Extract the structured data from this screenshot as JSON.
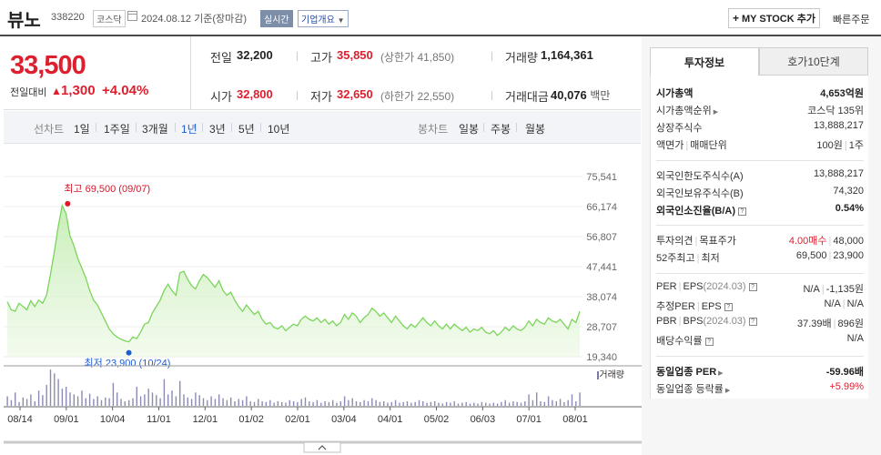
{
  "header": {
    "stock_name": "뷰노",
    "stock_code": "338220",
    "market": "코스닥",
    "date_text": "2024.08.12 기준(장마감)",
    "realtime_label": "실시간",
    "overview_label": "기업개요",
    "mystock_label": "MY STOCK 추가",
    "quick_order_label": "빠른주문"
  },
  "price": {
    "current": "33,500",
    "change_label": "전일대비",
    "change_arrow": "▲",
    "change_value": "1,300",
    "change_pct": "+4.04%"
  },
  "quote": {
    "prev_close_label": "전일",
    "prev_close": "32,200",
    "high_label": "고가",
    "high": "35,850",
    "upper_limit": "(상한가 41,850)",
    "volume_label": "거래량",
    "volume": "1,164,361",
    "open_label": "시가",
    "open": "32,800",
    "low_label": "저가",
    "low": "32,650",
    "lower_limit": "(하한가 22,550)",
    "amount_label": "거래대금",
    "amount": "40,076",
    "amount_unit": "백만"
  },
  "period_bar": {
    "line_label": "선차트",
    "periods": [
      "1일",
      "1주일",
      "3개월",
      "1년",
      "3년",
      "5년",
      "10년"
    ],
    "active_period": "1년",
    "candle_label": "봉차트",
    "candles": [
      "일봉",
      "주봉",
      "월봉"
    ]
  },
  "chart_data": {
    "type": "area",
    "y_ticks": [
      "75,541",
      "66,174",
      "56,807",
      "47,441",
      "38,074",
      "28,707",
      "19,340"
    ],
    "ylim": [
      19340,
      75541
    ],
    "x_ticks": [
      "08/14",
      "09/01",
      "10/04",
      "11/01",
      "12/01",
      "01/02",
      "02/01",
      "03/04",
      "04/01",
      "05/02",
      "06/03",
      "07/01",
      "08/01"
    ],
    "high_annotation": "최고 69,500 (09/07)",
    "low_annotation": "최저 23,900 (10/24)",
    "volume_label": "거래량",
    "values": [
      36500,
      34000,
      33500,
      36000,
      35000,
      34000,
      36800,
      35000,
      37000,
      36000,
      38500,
      45000,
      52000,
      60000,
      66500,
      64000,
      57000,
      54000,
      50000,
      47000,
      44000,
      40000,
      37000,
      35500,
      33000,
      30500,
      28000,
      26500,
      25500,
      24800,
      24300,
      24000,
      25500,
      25000,
      27000,
      29500,
      30000,
      33000,
      35000,
      37000,
      40000,
      42000,
      40000,
      38500,
      45500,
      46000,
      43500,
      41500,
      40500,
      43000,
      45000,
      44000,
      42500,
      41000,
      43000,
      40000,
      38500,
      39500,
      37000,
      35000,
      33500,
      35500,
      34000,
      32500,
      33500,
      31000,
      29500,
      30000,
      28500,
      28000,
      29000,
      27500,
      28500,
      29500,
      29000,
      31000,
      32000,
      31000,
      30500,
      31500,
      30000,
      31000,
      29500,
      30500,
      29000,
      30000,
      32500,
      31000,
      33000,
      32000,
      30000,
      31500,
      32500,
      34500,
      33500,
      32000,
      33000,
      31500,
      30000,
      32000,
      30500,
      29000,
      28000,
      29500,
      28500,
      30000,
      31500,
      30000,
      29000,
      30500,
      29000,
      28000,
      29500,
      28000,
      29500,
      28500,
      27500,
      28500,
      27000,
      28000,
      27500,
      28500,
      27000,
      26500,
      27500,
      26000,
      27000,
      28500,
      27500,
      29000,
      28000,
      27500,
      28500,
      30500,
      29000,
      31000,
      30000,
      29500,
      31500,
      30500,
      30000,
      31000,
      29500,
      28000,
      31000,
      30000,
      33500
    ],
    "volumes": [
      0.25,
      0.15,
      0.35,
      0.1,
      0.22,
      0.18,
      0.3,
      0.12,
      0.4,
      0.28,
      0.55,
      0.95,
      0.85,
      0.7,
      0.45,
      0.5,
      0.35,
      0.3,
      0.25,
      0.4,
      0.2,
      0.32,
      0.18,
      0.25,
      0.15,
      0.22,
      0.2,
      0.6,
      0.35,
      0.18,
      0.12,
      0.15,
      0.2,
      0.5,
      0.25,
      0.3,
      0.45,
      0.35,
      0.28,
      0.2,
      0.7,
      0.3,
      0.4,
      0.25,
      0.65,
      0.3,
      0.22,
      0.18,
      0.35,
      0.28,
      0.2,
      0.15,
      0.25,
      0.18,
      0.3,
      0.2,
      0.15,
      0.22,
      0.12,
      0.18,
      0.15,
      0.25,
      0.12,
      0.1,
      0.18,
      0.12,
      0.1,
      0.15,
      0.08,
      0.12,
      0.1,
      0.08,
      0.15,
      0.12,
      0.1,
      0.18,
      0.22,
      0.12,
      0.1,
      0.15,
      0.08,
      0.12,
      0.1,
      0.15,
      0.08,
      0.12,
      0.25,
      0.15,
      0.2,
      0.12,
      0.1,
      0.15,
      0.12,
      0.2,
      0.15,
      0.1,
      0.12,
      0.08,
      0.1,
      0.15,
      0.08,
      0.1,
      0.12,
      0.08,
      0.1,
      0.15,
      0.12,
      0.08,
      0.1,
      0.12,
      0.08,
      0.06,
      0.1,
      0.08,
      0.12,
      0.06,
      0.08,
      0.1,
      0.06,
      0.08,
      0.06,
      0.1,
      0.08,
      0.06,
      0.08,
      0.06,
      0.1,
      0.15,
      0.08,
      0.12,
      0.1,
      0.08,
      0.12,
      0.3,
      0.15,
      0.35,
      0.12,
      0.1,
      0.25,
      0.15,
      0.12,
      0.18,
      0.1,
      0.15,
      0.3,
      0.12,
      0.35
    ]
  },
  "right_panel": {
    "tab_info": "투자정보",
    "tab_hoga": "호가10단계",
    "market_cap_label": "시가총액",
    "market_cap": "4,653억원",
    "market_cap_rank_label": "시가총액순위",
    "market_cap_rank": "코스닥 135위",
    "listed_shares_label": "상장주식수",
    "listed_shares": "13,888,217",
    "par_label": "액면가",
    "unit_label": "매매단위",
    "par_value": "100원",
    "unit_value": "1주",
    "foreign_limit_label": "외국인한도주식수(A)",
    "foreign_limit": "13,888,217",
    "foreign_hold_label": "외국인보유주식수(B)",
    "foreign_hold": "74,320",
    "foreign_ratio_label": "외국인소진율(B/A)",
    "foreign_ratio": "0.54%",
    "opinion_label": "투자의견",
    "target_label": "목표주가",
    "opinion": "4.00매수",
    "target": "48,000",
    "w52_high_label": "52주최고",
    "w52_low_label": "최저",
    "w52_high": "69,500",
    "w52_low": "23,900",
    "per_label": "PER",
    "eps_label": "EPS",
    "eps_period": "(2024.03)",
    "per": "N/A",
    "eps": "-1,135원",
    "est_per_label": "추정PER",
    "est_eps_label": "EPS",
    "est_per": "N/A",
    "est_eps": "N/A",
    "pbr_label": "PBR",
    "bps_label": "BPS",
    "bps_period": "(2024.03)",
    "pbr": "37.39배",
    "bps": "896원",
    "dividend_label": "배당수익률",
    "dividend": "N/A",
    "sector_per_label": "동일업종 PER",
    "sector_per": "-59.96배",
    "sector_rate_label": "동일업종 등락률",
    "sector_rate": "+5.99%"
  }
}
